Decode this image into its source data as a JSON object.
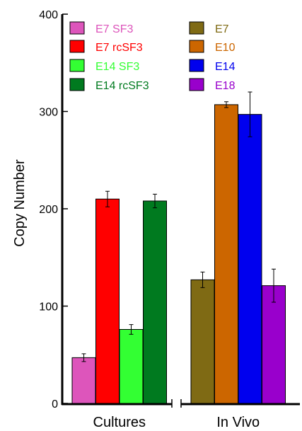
{
  "chart_data": {
    "type": "bar",
    "title": "",
    "xlabel": "",
    "ylabel": "Copy Number",
    "ylim": [
      0,
      400
    ],
    "yticks": [
      0,
      100,
      200,
      300,
      400
    ],
    "grid": false,
    "legend_placement": "top, two columns",
    "groups": [
      {
        "label": "Cultures",
        "bars": [
          {
            "name": "E7 SF3",
            "value": 47,
            "error": 4,
            "color": "#dd55bb"
          },
          {
            "name": "E7 rcSF3",
            "value": 210,
            "error": 8,
            "color": "#ff0000"
          },
          {
            "name": "E14 SF3",
            "value": 76,
            "error": 5,
            "color": "#33ff33"
          },
          {
            "name": "E14 rcSF3",
            "value": 208,
            "error": 7,
            "color": "#007a1f"
          }
        ]
      },
      {
        "label": "In Vivo",
        "bars": [
          {
            "name": "E7",
            "value": 127,
            "error": 8,
            "color": "#7f6a14"
          },
          {
            "name": "E10",
            "value": 307,
            "error": 3,
            "color": "#cc6600"
          },
          {
            "name": "E14",
            "value": 297,
            "error": 23,
            "color": "#0000ee"
          },
          {
            "name": "E18",
            "value": 121,
            "error": 17,
            "color": "#9900cc"
          }
        ]
      }
    ],
    "legend": [
      {
        "name": "E7 SF3",
        "color": "#dd55bb"
      },
      {
        "name": "E7 rcSF3",
        "color": "#ff0000"
      },
      {
        "name": "E14 SF3",
        "color": "#33ff33"
      },
      {
        "name": "E14 rcSF3",
        "color": "#007a1f"
      },
      {
        "name": "E7",
        "color": "#7f6a14"
      },
      {
        "name": "E10",
        "color": "#cc6600"
      },
      {
        "name": "E14",
        "color": "#0000ee"
      },
      {
        "name": "E18",
        "color": "#9900cc"
      }
    ]
  }
}
